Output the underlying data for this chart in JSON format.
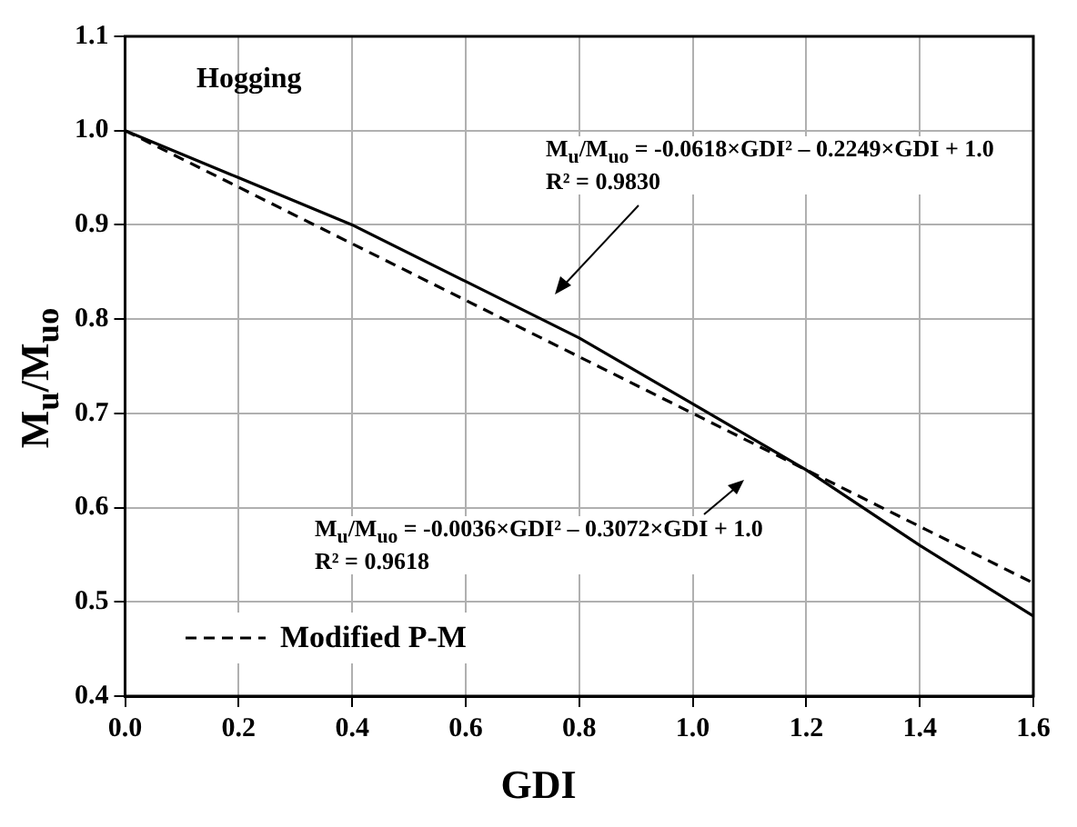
{
  "chart_data": {
    "type": "line",
    "xlabel": "GDI",
    "ylabel": "M$_{u}$/M$_{uo}$",
    "x": [
      0,
      0.2,
      0.4,
      0.6,
      0.8,
      1.0,
      1.2,
      1.4,
      1.6
    ],
    "series": [
      {
        "color": "#000000",
        "line_style": "solid",
        "values": [
          1.0,
          0.95,
          0.9,
          0.84,
          0.78,
          0.71,
          0.64,
          0.56,
          0.485
        ]
      },
      {
        "name": "Modified P-M",
        "color": "#000000",
        "line_style": "dashed",
        "values": [
          1.0,
          0.94,
          0.88,
          0.82,
          0.76,
          0.7,
          0.64,
          0.58,
          0.52
        ]
      }
    ],
    "xlim": [
      0,
      1.6
    ],
    "xticks": [
      {
        "value": 0,
        "label": "0.0"
      },
      0.2,
      0.4,
      0.6,
      0.8,
      {
        "value": 1,
        "label": "1.0"
      },
      1.2,
      1.4,
      1.6
    ],
    "ylim": [
      0.4,
      1.1
    ],
    "yticks": [
      0.4,
      0.5,
      0.6,
      0.7,
      0.8,
      0.9,
      {
        "value": 1,
        "label": "1.0"
      },
      1.1
    ],
    "grid": true,
    "legend": "bottom left",
    "marker": "none",
    "annotations": [
      "Hogging",
      "M$_{u}$/M$_{uo}$ = -0.0618×GDI² – 0.2249×GDI + 1.0\nR² = 0.9830",
      "M$_{u}$/M$_{uo}$ = -0.0036×GDI² – 0.3072×GDI + 1.0\nR² = 0.9618"
    ]
  }
}
